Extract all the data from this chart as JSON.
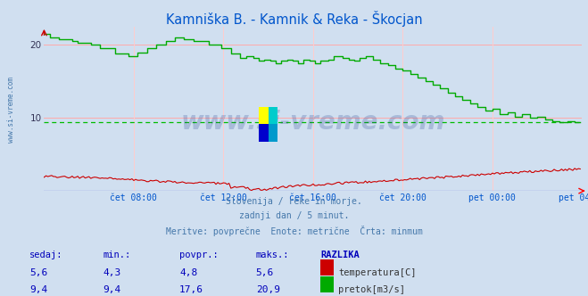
{
  "title": "Kamniška B. - Kamnik & Reka - Škocjan",
  "title_color": "#0055cc",
  "bg_color": "#d0dff0",
  "plot_bg_color": "#d0dff0",
  "grid_color_h": "#ffaaaa",
  "grid_color_v": "#ffcccc",
  "avg_line_color": "#00bb00",
  "avg_line_value": 9.4,
  "xlabel_color": "#0055cc",
  "xtick_labels": [
    "čet 08:00",
    "čet 12:00",
    "čet 16:00",
    "čet 20:00",
    "pet 00:00",
    "pet 04:00"
  ],
  "ylim": [
    0,
    22.5
  ],
  "subtitle_lines": [
    "Slovenija / reke in morje.",
    "zadnji dan / 5 minut.",
    "Meritve: povprečne  Enote: metrične  Črta: minmum"
  ],
  "subtitle_color": "#4477aa",
  "table_header": [
    "sedaj:",
    "min.:",
    "povpr.:",
    "maks.:",
    "RAZLIKA"
  ],
  "table_row1": [
    "5,6",
    "4,3",
    "4,8",
    "5,6",
    "temperatura[C]"
  ],
  "table_row2": [
    "9,4",
    "9,4",
    "17,6",
    "20,9",
    "pretok[m3/s]"
  ],
  "table_color": "#0000bb",
  "temp_color": "#cc0000",
  "flow_color": "#00aa00",
  "watermark_text": "www.si-vreme.com",
  "watermark_color": "#1a3a8a",
  "watermark_alpha": 0.22,
  "left_label": "www.si-vreme.com",
  "left_label_color": "#4477aa",
  "logo_colors": [
    "#ffff00",
    "#00cccc",
    "#0000cc",
    "#0088cc"
  ]
}
